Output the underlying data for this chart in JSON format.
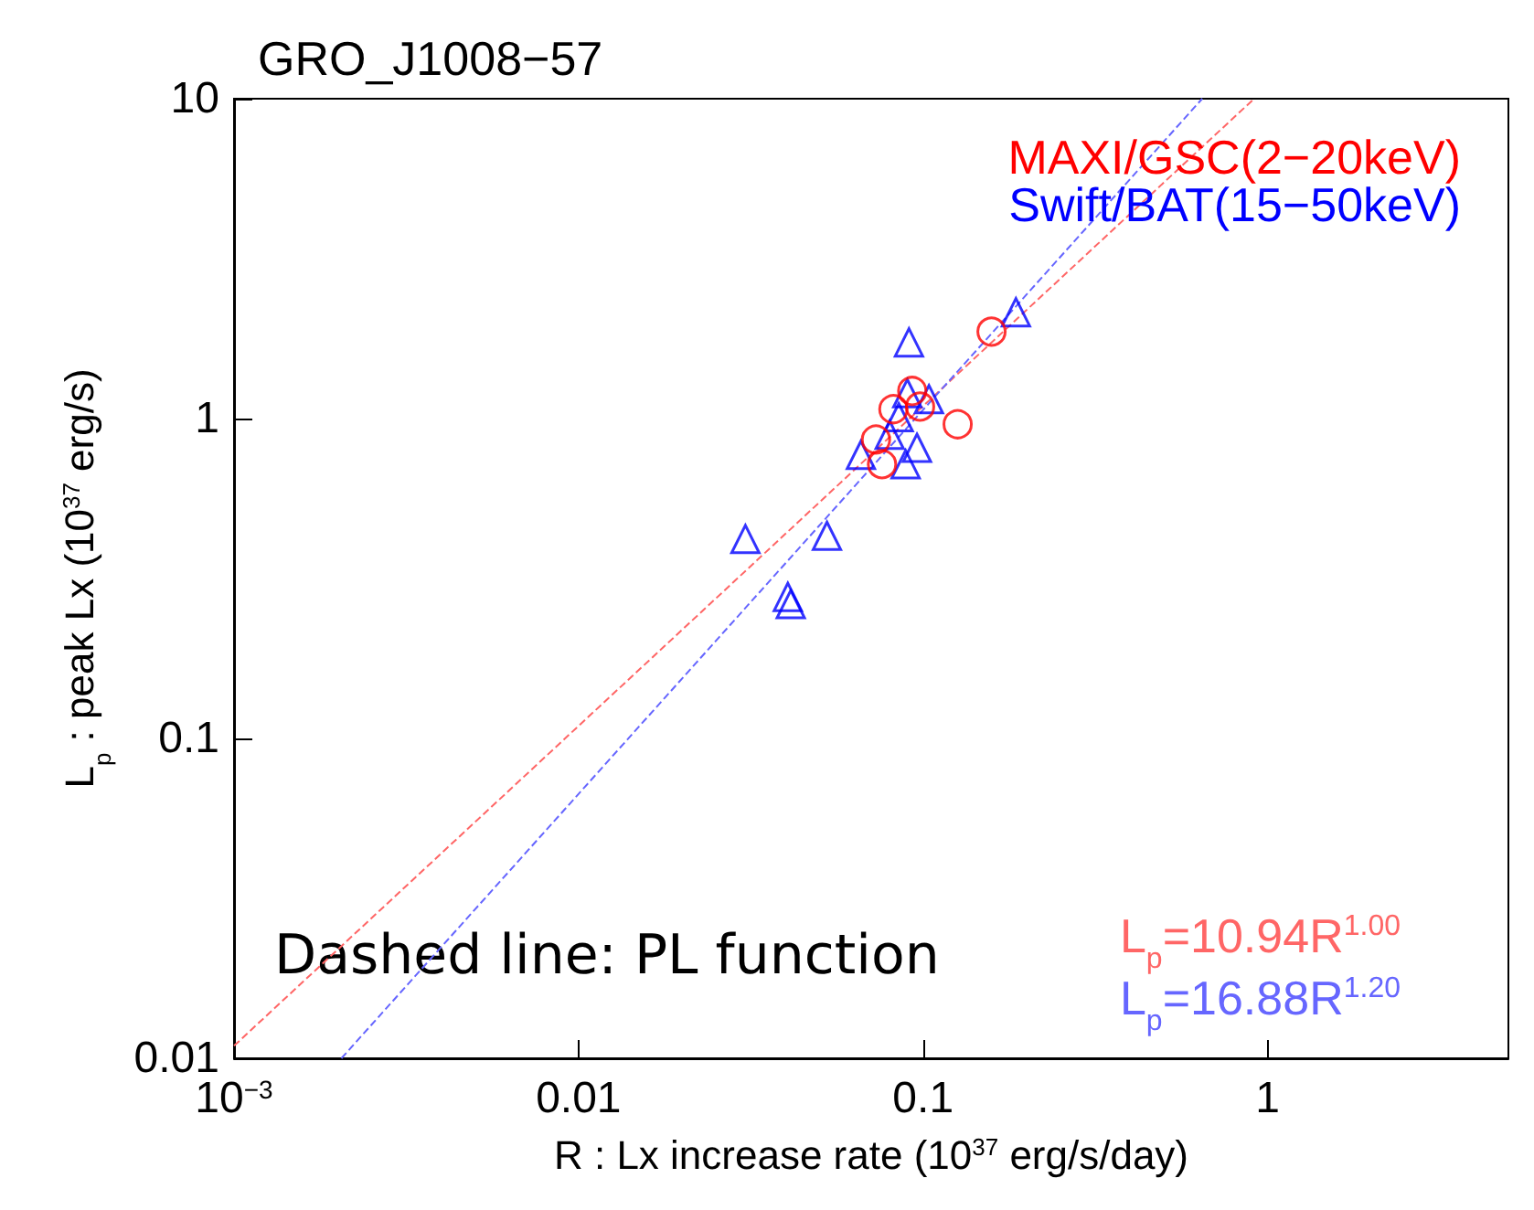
{
  "chart_data": {
    "type": "scatter",
    "title": "GRO_J1008−57",
    "xlabel": "R : Lx increase rate (10$^{37}$ erg/s/day)",
    "ylabel": "L$_{p}$ : peak Lx (10$^{37}$ erg/s)",
    "log": "xy",
    "xlim": [
      0.001,
      5
    ],
    "ylim": [
      0.01,
      10
    ],
    "xticks": [
      {
        "value": 0.001,
        "label": "10$^{−3}$"
      },
      0.01,
      0.1,
      1
    ],
    "yticks": [
      0.01,
      0.1,
      1,
      10
    ],
    "grid": false,
    "legend": "right",
    "annotations": [
      "Dashed line: PL function"
    ],
    "series": [
      {
        "name": "MAXI/GSC(2−20keV)",
        "color": "#ff0000",
        "marker": "circle",
        "x": [
          0.158,
          0.093,
          0.098,
          0.082,
          0.126,
          0.073,
          0.076
        ],
        "values": [
          1.87,
          1.22,
          1.09,
          1.07,
          0.96,
          0.86,
          0.72
        ]
      },
      {
        "name": "Swift/BAT(15−50keV)",
        "color": "#0000ff",
        "marker": "triangle",
        "x": [
          0.186,
          0.091,
          0.09,
          0.104,
          0.085,
          0.08,
          0.096,
          0.066,
          0.089,
          0.0305,
          0.0526,
          0.0405,
          0.0413
        ],
        "values": [
          2.15,
          1.73,
          1.2,
          1.15,
          1.01,
          0.89,
          0.81,
          0.77,
          0.72,
          0.42,
          0.43,
          0.277,
          0.263
        ]
      },
      {
        "name": "L$_{p}$=10.94R$^{1.00}$",
        "type": "line",
        "color": "#ff6666",
        "line_style": "dashed",
        "marker": "none",
        "x": [
          0.001,
          0.914
        ],
        "values": [
          0.01094,
          10
        ]
      },
      {
        "name": "L$_{p}$=16.88R$^{1.20}$",
        "type": "line",
        "color": "#6666ff",
        "line_style": "dashed",
        "marker": "none",
        "x": [
          0.00205,
          0.646
        ],
        "values": [
          0.01,
          10
        ]
      }
    ]
  }
}
